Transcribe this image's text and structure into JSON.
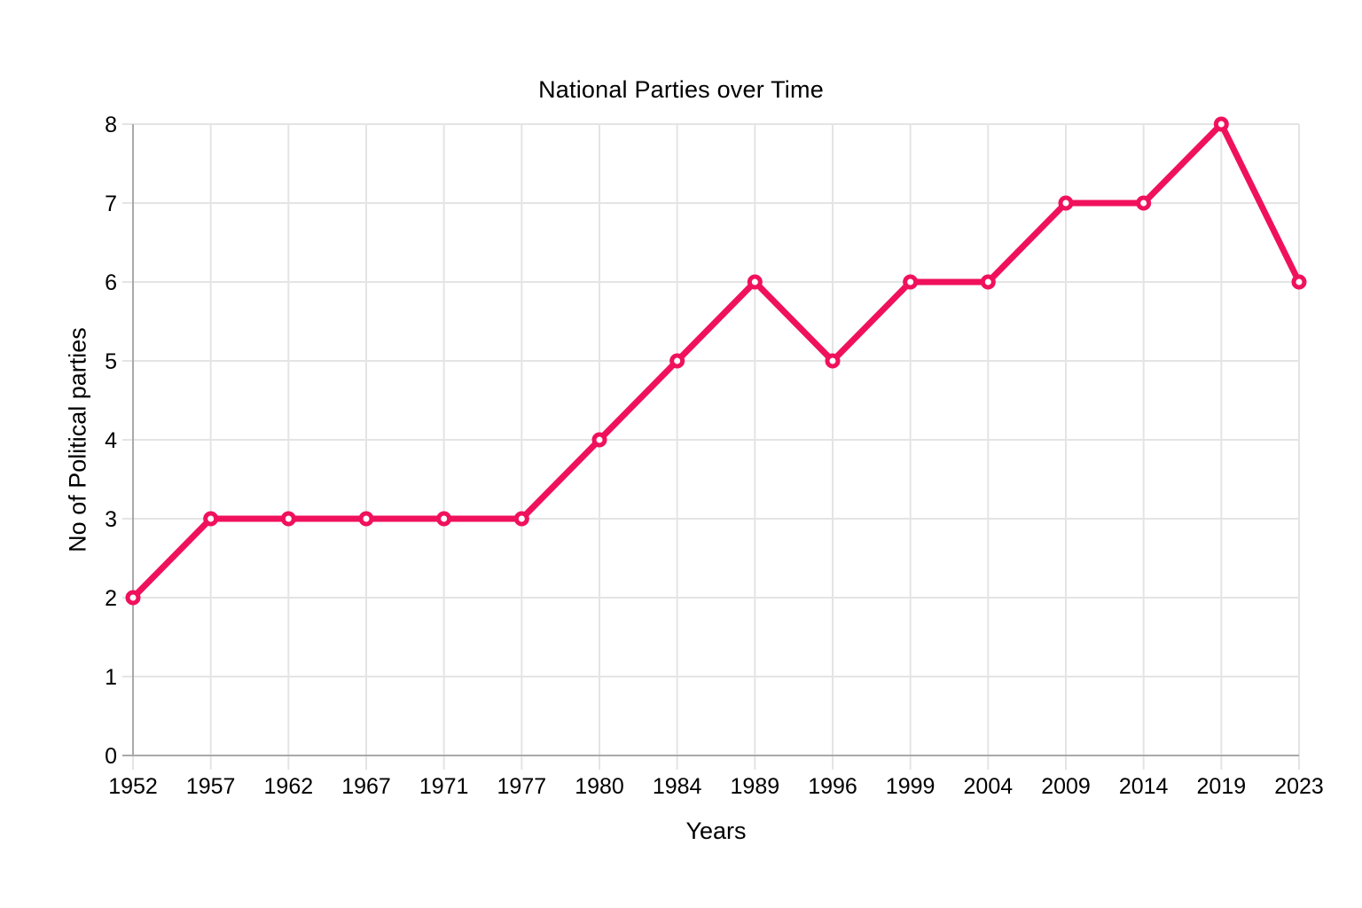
{
  "chart_data": {
    "type": "line",
    "title": "National Parties over Time",
    "xlabel": "Years",
    "ylabel": "No of Political parties",
    "categories": [
      "1952",
      "1957",
      "1962",
      "1967",
      "1971",
      "1977",
      "1980",
      "1984",
      "1989",
      "1996",
      "1999",
      "2004",
      "2009",
      "2014",
      "2019",
      "2023"
    ],
    "values": [
      2,
      3,
      3,
      3,
      3,
      3,
      4,
      5,
      6,
      5,
      6,
      6,
      7,
      7,
      8,
      6
    ],
    "ylim": [
      0,
      8
    ],
    "yticks": [
      0,
      1,
      2,
      3,
      4,
      5,
      6,
      7,
      8
    ],
    "grid": true,
    "legend_position": "none",
    "colors": {
      "line": "#F0115C",
      "marker_center": "#FFFFFF",
      "grid": "#E4E4E4",
      "axis": "#A9A9A9",
      "text": "#000000",
      "background": "#FFFFFF"
    }
  }
}
